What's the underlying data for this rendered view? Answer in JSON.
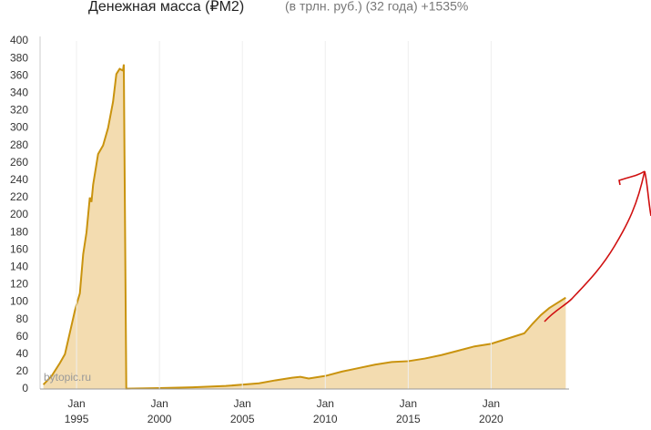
{
  "chart_data": {
    "type": "area",
    "title": "Денежная масса (₽M2)",
    "subtitle": "(в трлн. руб.) (32 года) +1535%",
    "watermark": "bytopic.ru",
    "color": "#c9930e",
    "fill": "#f3dcb0",
    "x": [
      1993.0,
      1993.5,
      1994.0,
      1994.3,
      1994.6,
      1994.9,
      1995.0,
      1995.2,
      1995.4,
      1995.6,
      1995.8,
      1995.9,
      1996.0,
      1996.3,
      1996.6,
      1996.9,
      1997.2,
      1997.4,
      1997.6,
      1997.8,
      1997.85,
      1998.0,
      2000.0,
      2002.0,
      2004.0,
      2006.0,
      2007.0,
      2008.0,
      2008.5,
      2009.0,
      2010.0,
      2011.0,
      2012.0,
      2013.0,
      2014.0,
      2015.0,
      2016.0,
      2017.0,
      2018.0,
      2019.0,
      2020.0,
      2021.0,
      2022.0,
      2022.5,
      2023.0,
      2023.5,
      2024.0,
      2024.5
    ],
    "values": [
      5,
      15,
      30,
      40,
      65,
      90,
      97,
      110,
      155,
      180,
      220,
      215,
      235,
      270,
      280,
      300,
      330,
      362,
      368,
      366,
      373,
      0.4,
      1,
      2,
      3.5,
      6.5,
      10,
      13,
      14,
      12,
      15,
      20,
      24,
      28,
      31,
      32,
      35,
      39,
      44,
      49,
      52,
      58,
      64,
      75,
      85,
      93,
      99,
      105
    ],
    "xlim": [
      1992.8,
      2024.7
    ],
    "xticks": [
      {
        "value": 1995,
        "label": "Jan 1995"
      },
      {
        "value": 2000,
        "label": "Jan 2000"
      },
      {
        "value": 2005,
        "label": "Jan 2005"
      },
      {
        "value": 2010,
        "label": "Jan 2010"
      },
      {
        "value": 2015,
        "label": "Jan 2015"
      },
      {
        "value": 2020,
        "label": "Jan 2020"
      }
    ],
    "ylim": [
      0,
      400
    ],
    "yticks": [
      0,
      20,
      40,
      60,
      80,
      100,
      120,
      140,
      160,
      180,
      200,
      220,
      240,
      260,
      280,
      300,
      320,
      340,
      360,
      380,
      400
    ],
    "grid": true
  }
}
